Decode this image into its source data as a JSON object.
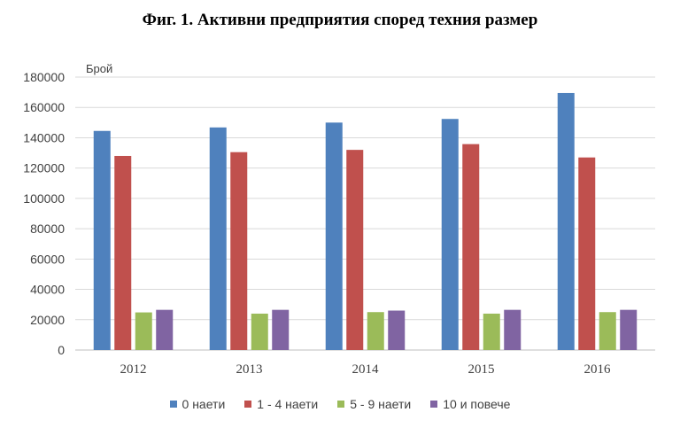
{
  "title": "Фиг. 1. Активни предприятия според техния размер",
  "colors": {
    "series": [
      "#4F81BD",
      "#C0504D",
      "#9BBB59",
      "#8064A2"
    ],
    "grid": "#D9D9D9",
    "axis": "#BFBFBF"
  },
  "chart_data": {
    "type": "bar",
    "title": "Фиг. 1. Активни предприятия според техния размер",
    "ylabel": "Брой",
    "xlabel": "",
    "categories": [
      "2012",
      "2013",
      "2014",
      "2015",
      "2016"
    ],
    "ylim": [
      0,
      180000
    ],
    "yticks": [
      "0",
      "20000",
      "40000",
      "60000",
      "80000",
      "100000",
      "120000",
      "140000",
      "160000",
      "180000"
    ],
    "grid": true,
    "legend_position": "bottom",
    "series": [
      {
        "name": "0 наети",
        "values": [
          144500,
          146800,
          150000,
          152400,
          169500
        ]
      },
      {
        "name": "1 - 4 наети",
        "values": [
          128000,
          130500,
          132000,
          135800,
          127000
        ]
      },
      {
        "name": "5 - 9 наети",
        "values": [
          24800,
          24000,
          25000,
          24000,
          25000
        ]
      },
      {
        "name": "10 и повече",
        "values": [
          26500,
          26500,
          26000,
          26500,
          26500
        ]
      }
    ]
  }
}
